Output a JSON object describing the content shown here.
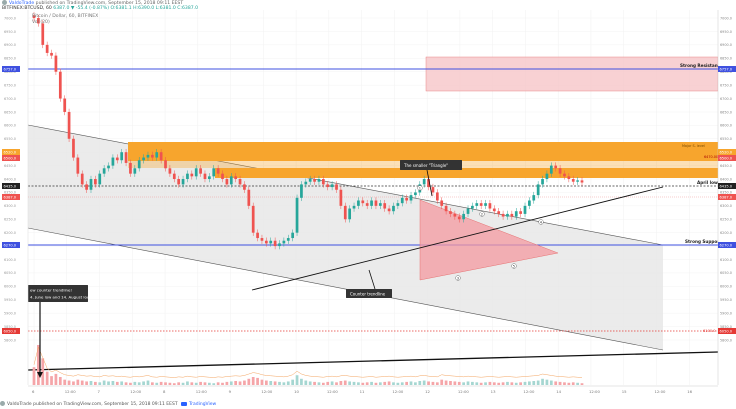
{
  "header": {
    "author": "ValdoTrade",
    "published_text": "published on TradingView.com, September 15, 2018 09:11 EEST",
    "symbol_line": "BITFINEX:BTCUSD, 60",
    "ohlc_text": "6387.0 ▼ -55.4 (-0.87%) O:6381.1 H:6390.0 L:6381.0 C:6387.0",
    "instrument_name": "Bitcoin / Dollar, 60, BITFINEX",
    "volume_label": "Vol (20)"
  },
  "footer": {
    "author": "ValdoTrade",
    "published_text": "published on TradingView.com, September 15, 2018 09:11 EEST",
    "brand": "TradingView"
  },
  "annotations": {
    "strong_resistance": "Strong Resistance",
    "april_low": "April low",
    "strong_support": "Strong Support",
    "triangle_label": "The smaller \"Triangle\"",
    "counter_trendline": "Counter trendline",
    "left_note_line1": "ew counter trendline!",
    "left_note_line2": "4. June low and 14. August low",
    "small_red_label": "6100.0",
    "zone_label_1": "Major S. level",
    "zone_label_2": "6470.00",
    "wave_labels": [
      "1",
      "2",
      "3",
      "4",
      "5"
    ]
  },
  "price_badges": {
    "right": [
      "6757.0",
      "6520.0",
      "6500.0",
      "6435.0",
      "6387.0",
      "6270.0",
      "6050.0"
    ],
    "left": [
      "6757.0",
      "6520.0",
      "6500.0",
      "6435.0",
      "6387.0",
      "6270.0",
      "6050.0"
    ]
  },
  "colors": {
    "up": "#26a69a",
    "down": "#ef5350",
    "resistance_blue": "#3f51e0",
    "orange_zone": "#f7a52d",
    "pink_zone": "#f6c5c8",
    "channel_fill": "#e6e6e6",
    "triangle_fill": "#f49aa0",
    "dashed_red": "#e53935"
  },
  "chart_data": {
    "type": "candlestick",
    "symbol": "BITFINEX:BTCUSD",
    "interval": "60",
    "y_axis_ticks": [
      5800,
      5850,
      5900,
      5950,
      6000,
      6050,
      6100,
      6150,
      6200,
      6250,
      6300,
      6350,
      6400,
      6450,
      6500,
      6550,
      6600,
      6650,
      6700,
      6750,
      6800,
      6850,
      6900,
      6950,
      7000
    ],
    "ylim": [
      5800,
      7030
    ],
    "x_tick_labels": [
      "6",
      "12:00",
      "7",
      "12:00",
      "8",
      "12:00",
      "9",
      "12:00",
      "10",
      "12:00",
      "11",
      "12:00",
      "12",
      "12:00",
      "13",
      "12:00",
      "14",
      "12:00",
      "15",
      "12:00",
      "16"
    ],
    "levels": {
      "strong_resistance": 6757,
      "april_low": 6435,
      "strong_support": 6270,
      "dashed_red": 6100
    },
    "zones": [
      {
        "name": "pink",
        "from": 6680,
        "to": 6800
      },
      {
        "name": "orange-upper",
        "from": 6510,
        "to": 6550
      },
      {
        "name": "orange-middle",
        "from": 6470,
        "to": 6510
      },
      {
        "name": "orange-lower",
        "from": 6435,
        "to": 6470
      }
    ],
    "close": [
      7000,
      6980,
      6900,
      6870,
      6860,
      6800,
      6700,
      6650,
      6550,
      6480,
      6420,
      6380,
      6360,
      6400,
      6380,
      6420,
      6440,
      6450,
      6480,
      6470,
      6500,
      6460,
      6420,
      6440,
      6470,
      6480,
      6490,
      6480,
      6500,
      6470,
      6440,
      6420,
      6400,
      6380,
      6400,
      6420,
      6410,
      6440,
      6420,
      6400,
      6410,
      6440,
      6420,
      6400,
      6380,
      6410,
      6400,
      6380,
      6360,
      6300,
      6200,
      6180,
      6170,
      6160,
      6170,
      6150,
      6160,
      6170,
      6180,
      6200,
      6330,
      6380,
      6390,
      6400,
      6390,
      6400,
      6380,
      6370,
      6380,
      6360,
      6300,
      6250,
      6290,
      6300,
      6320,
      6310,
      6300,
      6320,
      6300,
      6310,
      6290,
      6280,
      6300,
      6310,
      6330,
      6320,
      6340,
      6350,
      6380,
      6400,
      6370,
      6350,
      6320,
      6300,
      6280,
      6270,
      6260,
      6250,
      6270,
      6290,
      6300,
      6310,
      6300,
      6310,
      6290,
      6280,
      6270,
      6260,
      6270,
      6260,
      6280,
      6270,
      6300,
      6320,
      6340,
      6380,
      6400,
      6420,
      6450,
      6440,
      6420,
      6410,
      6400,
      6390,
      6395,
      6387
    ],
    "volume": [
      40,
      90,
      60,
      30,
      20,
      25,
      18,
      12,
      10,
      8,
      12,
      10,
      8,
      9,
      7,
      6,
      10,
      8,
      9,
      7,
      8,
      6,
      5,
      7,
      6,
      8,
      10,
      6,
      5,
      7,
      6,
      5,
      4,
      6,
      5,
      8,
      6,
      5,
      7,
      6,
      5,
      4,
      6,
      5,
      7,
      8,
      9,
      8,
      10,
      14,
      18,
      16,
      12,
      10,
      9,
      8,
      7,
      6,
      8,
      12,
      22,
      14,
      10,
      8,
      7,
      6,
      5,
      7,
      8,
      6,
      9,
      10,
      8,
      7,
      6,
      5,
      6,
      7,
      5,
      6,
      7,
      8,
      6,
      5,
      6,
      7,
      8,
      6,
      9,
      10,
      8,
      7,
      6,
      12,
      10,
      9,
      8,
      7,
      6,
      8,
      7,
      6,
      5,
      6,
      7,
      6,
      5,
      6,
      7,
      6,
      5,
      6,
      7,
      8,
      9,
      10,
      14,
      12,
      10,
      8,
      7,
      6,
      5,
      6,
      5,
      4
    ]
  }
}
